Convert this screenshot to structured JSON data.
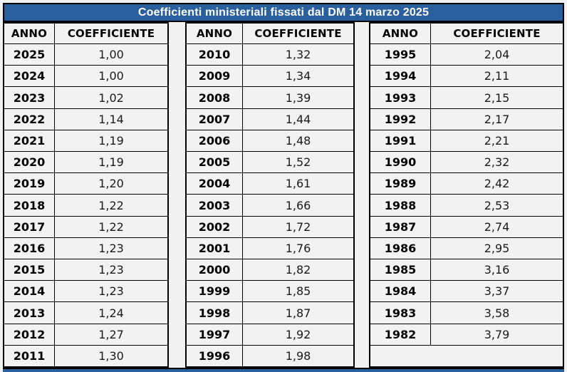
{
  "title": "Coefficienti ministeriali fissati dal DM 14 marzo 2025",
  "column_headers": {
    "anno": "ANNO",
    "coefficiente": "COEFFICIENTE"
  },
  "colors": {
    "title_bar_bg": "#2a5f9d",
    "title_text": "#ffffff",
    "page_bg": "#f0f1f0",
    "cell_bg": "#f2f2f2",
    "border": "#000000",
    "year_text": "#000000",
    "coefficient_text": "#1a1a1a",
    "footer_bar_bg": "#2a5f9d"
  },
  "groups": [
    {
      "rows": [
        [
          "2025",
          "1,00"
        ],
        [
          "2024",
          "1,00"
        ],
        [
          "2023",
          "1,02"
        ],
        [
          "2022",
          "1,14"
        ],
        [
          "2021",
          "1,19"
        ],
        [
          "2020",
          "1,19"
        ],
        [
          "2019",
          "1,20"
        ],
        [
          "2018",
          "1,22"
        ],
        [
          "2017",
          "1,22"
        ],
        [
          "2016",
          "1,23"
        ],
        [
          "2015",
          "1,23"
        ],
        [
          "2014",
          "1,23"
        ],
        [
          "2013",
          "1,24"
        ],
        [
          "2012",
          "1,27"
        ],
        [
          "2011",
          "1,30"
        ]
      ]
    },
    {
      "rows": [
        [
          "2010",
          "1,32"
        ],
        [
          "2009",
          "1,34"
        ],
        [
          "2008",
          "1,39"
        ],
        [
          "2007",
          "1,44"
        ],
        [
          "2006",
          "1,48"
        ],
        [
          "2005",
          "1,52"
        ],
        [
          "2004",
          "1,61"
        ],
        [
          "2003",
          "1,66"
        ],
        [
          "2002",
          "1,72"
        ],
        [
          "2001",
          "1,76"
        ],
        [
          "2000",
          "1,82"
        ],
        [
          "1999",
          "1,85"
        ],
        [
          "1998",
          "1,87"
        ],
        [
          "1997",
          "1,92"
        ],
        [
          "1996",
          "1,98"
        ]
      ]
    },
    {
      "rows": [
        [
          "1995",
          "2,04"
        ],
        [
          "1994",
          "2,11"
        ],
        [
          "1993",
          "2,15"
        ],
        [
          "1992",
          "2,17"
        ],
        [
          "1991",
          "2,21"
        ],
        [
          "1990",
          "2,32"
        ],
        [
          "1989",
          "2,42"
        ],
        [
          "1988",
          "2,53"
        ],
        [
          "1987",
          "2,74"
        ],
        [
          "1986",
          "2,95"
        ],
        [
          "1985",
          "3,16"
        ],
        [
          "1984",
          "3,37"
        ],
        [
          "1983",
          "3,58"
        ],
        [
          "1982",
          "3,79"
        ]
      ],
      "trailing_empty_row": true
    }
  ]
}
